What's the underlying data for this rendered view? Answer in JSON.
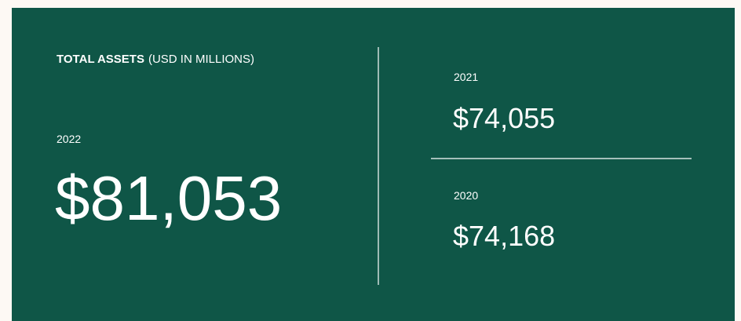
{
  "header": {
    "title_bold": "TOTAL ASSETS",
    "title_rest": "(USD IN MILLIONS)"
  },
  "items": [
    {
      "year": "2022",
      "value": "$81,053"
    },
    {
      "year": "2021",
      "value": "$74,055"
    },
    {
      "year": "2020",
      "value": "$74,168"
    }
  ]
}
